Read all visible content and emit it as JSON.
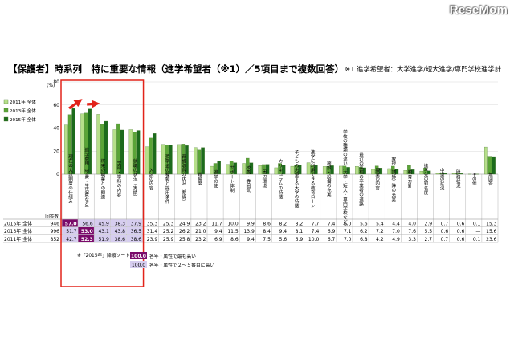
{
  "brand": "ReseMom",
  "title": "【保護者】時系列　特に重要な情報（進学希望者（※1）／5項目まで複数回答）",
  "note": "※1 進学希望者：大学進学/短大進学/専門学校進学計",
  "legend_items": [
    {
      "label": "2011年 全体",
      "color": "#b6df8a"
    },
    {
      "label": "2013年 全体",
      "color": "#5aa437"
    },
    {
      "label": "2015年 全体",
      "color": "#1c6b1c"
    }
  ],
  "footnotes": {
    "marker": "※「2015年」降順ソート",
    "top1_swatch": "100.0",
    "top1_desc": "各年・属性で最も高い",
    "top2_swatch": "100.0",
    "top2_desc": "各年・属性で２～５番目に高い"
  },
  "table": {
    "n_header": "回答数",
    "rows": [
      {
        "label": "2015年 全体",
        "n": "946",
        "values": [
          "57.0",
          "56.6",
          "45.9",
          "38.3",
          "37.9",
          "35.3",
          "25.3",
          "24.9",
          "23.2",
          "11.7",
          "10.0",
          "9.9",
          "8.6",
          "8.2",
          "8.2",
          "7.7",
          "7.4",
          "6.0",
          "5.6",
          "5.4",
          "4.4",
          "4.0",
          "2.9",
          "0.7",
          "0.6",
          "0.1",
          "15.3"
        ]
      },
      {
        "label": "2013年 全体",
        "n": "996",
        "values": [
          "51.7",
          "53.0",
          "43.1",
          "43.8",
          "36.5",
          "31.4",
          "25.2",
          "26.2",
          "21.0",
          "9.4",
          "11.5",
          "13.9",
          "8.4",
          "9.4",
          "8.1",
          "7.4",
          "6.9",
          "7.1",
          "6.2",
          "7.2",
          "7.0",
          "7.6",
          "5.5",
          "0.6",
          "0.6",
          "—",
          "15.6"
        ]
      },
      {
        "label": "2011年 全体",
        "n": "852",
        "values": [
          "42.7",
          "52.3",
          "51.9",
          "38.6",
          "38.6",
          "23.9",
          "25.9",
          "25.8",
          "23.2",
          "6.9",
          "8.6",
          "9.4",
          "7.5",
          "5.6",
          "6.9",
          "10.0",
          "6.7",
          "7.0",
          "6.8",
          "4.2",
          "4.9",
          "3.3",
          "2.7",
          "0.7",
          "0.6",
          "0.1",
          "23.6"
        ]
      }
    ],
    "top1_cells": [
      [
        0,
        0
      ],
      [
        1,
        1
      ],
      [
        2,
        1
      ]
    ],
    "top2_cells": [
      [
        0,
        1
      ],
      [
        0,
        2
      ],
      [
        0,
        3
      ],
      [
        0,
        4
      ],
      [
        1,
        0
      ],
      [
        1,
        2
      ],
      [
        1,
        3
      ],
      [
        1,
        4
      ],
      [
        2,
        0
      ],
      [
        2,
        2
      ],
      [
        2,
        3
      ],
      [
        2,
        4
      ]
    ]
  },
  "chart_data": {
    "type": "bar",
    "title": "【保護者】時系列　特に重要な情報（進学希望者（※1）／5項目まで複数回答）",
    "ylabel": "(%)",
    "ylim": [
      0,
      80
    ],
    "yticks": [
      0,
      20,
      40,
      60,
      80
    ],
    "grid": true,
    "legend_position": "left",
    "categories": [
      "現在の入試制度の仕組み",
      "進学費用（学費・生活費など）",
      "将来の職業との関連",
      "学部・学科の内容",
      "就職の状況（実績）",
      "入試の内容",
      "奨学金の種類と採用条件",
      "資格取得の状況（実績）",
      "難易度",
      "進学の使",
      "サポート体制",
      "校風・雰囲気",
      "周辺環境",
      "カリキュラムの特徴",
      "子どもの志望する大学の特徴",
      "進学に利用できる教育ローン",
      "施設・設備の充実",
      "学校の種類の違い（大学・短大・専門学校など）",
      "最近の高校の卒業者の進路",
      "授業の内容",
      "教授（講師）陣の充実",
      "教育方針",
      "進学先の知名度",
      "中退の状況",
      "財務状況",
      "その他",
      "無回答"
    ],
    "series": [
      {
        "name": "2011年 全体",
        "values": [
          42.7,
          52.3,
          51.9,
          38.6,
          38.6,
          23.9,
          25.9,
          25.8,
          23.2,
          6.9,
          8.6,
          9.4,
          7.5,
          5.6,
          6.9,
          10.0,
          6.7,
          7.0,
          6.8,
          4.2,
          4.9,
          3.3,
          2.7,
          0.7,
          0.6,
          0.1,
          23.6
        ]
      },
      {
        "name": "2013年 全体",
        "values": [
          51.7,
          53.0,
          43.1,
          43.8,
          36.5,
          31.4,
          25.2,
          26.2,
          21.0,
          9.4,
          11.5,
          13.9,
          8.4,
          9.4,
          8.1,
          7.4,
          6.9,
          7.1,
          6.2,
          7.2,
          7.0,
          7.6,
          5.5,
          0.6,
          0.6,
          null,
          15.6
        ]
      },
      {
        "name": "2015年 全体",
        "values": [
          57.0,
          56.6,
          45.9,
          38.3,
          37.9,
          35.3,
          25.3,
          24.9,
          23.2,
          11.7,
          10.0,
          9.9,
          8.6,
          8.2,
          8.2,
          7.7,
          7.4,
          6.0,
          5.6,
          5.4,
          4.4,
          4.0,
          2.9,
          0.7,
          0.6,
          0.1,
          15.3
        ]
      }
    ],
    "highlight_box_categories": [
      0,
      4
    ]
  }
}
